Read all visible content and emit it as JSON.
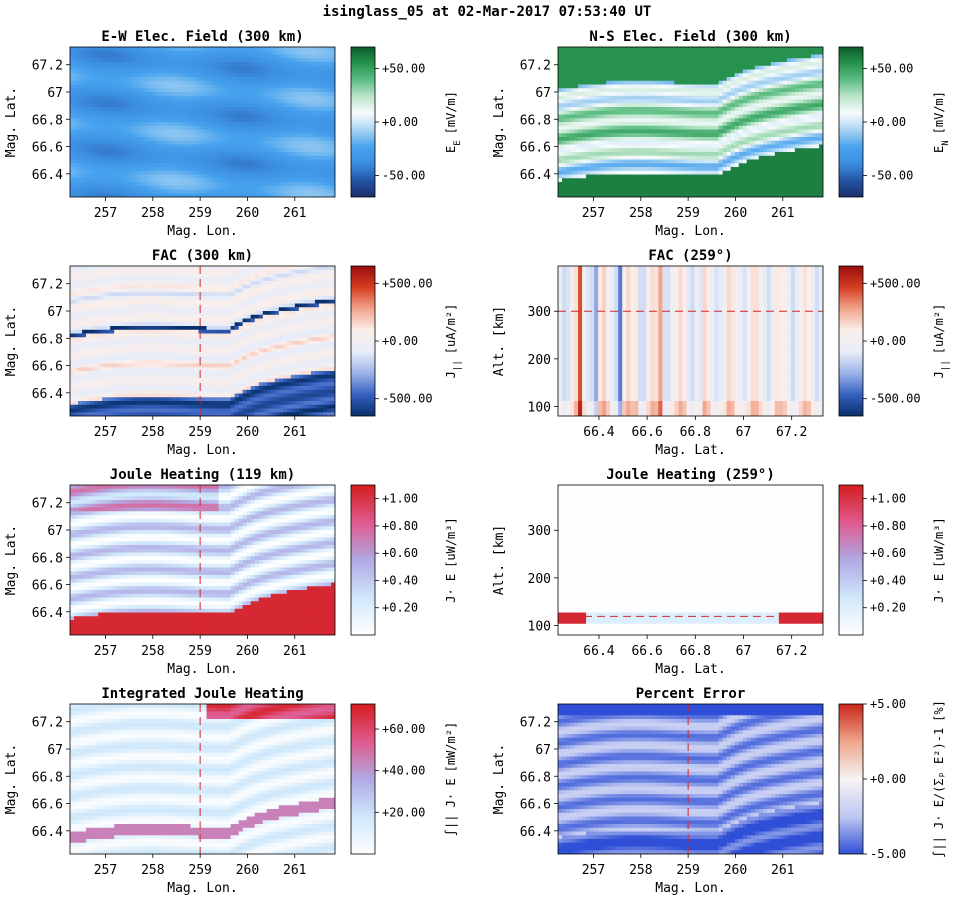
{
  "suptitle": "isinglass_05 at 02-Mar-2017 07:53:40 UT",
  "colors": {
    "blue_cmap": [
      "#1c2d6b",
      "#2555a6",
      "#3c8ee0",
      "#46a2ee",
      "#a6d2f2",
      "#f7fbff",
      "#bfe6cc",
      "#5fbf86",
      "#27944f",
      "#0a5d2a"
    ],
    "rdbu_cmap": [
      "#09306b",
      "#3560c0",
      "#9db3e8",
      "#e7edf9",
      "#fbeeea",
      "#f2a58c",
      "#d63d22",
      "#9a0c0c"
    ],
    "joule_cmap": [
      "#ffffff",
      "#cfe8fb",
      "#b0a9e4",
      "#e05a8e",
      "#d41d1d"
    ],
    "err_cmap": [
      "#2f4fd6",
      "#bfc8f2",
      "#f7f4f2",
      "#efa58b",
      "#c8261b"
    ],
    "cut_line": "#d62728"
  },
  "chart_data": [
    {
      "id": "ew",
      "type": "heatmap",
      "title": "E-W Elec. Field (300 km)",
      "xlabel": "Mag. Lon.",
      "ylabel": "Mag. Lat.",
      "x_ticks": [
        "257",
        "258",
        "259",
        "260",
        "261"
      ],
      "x_tick_values": [
        257,
        258,
        259,
        260,
        261
      ],
      "y_ticks": [
        "66.4",
        "66.6",
        "66.8",
        "67",
        "67.2"
      ],
      "y_tick_values": [
        66.4,
        66.6,
        66.8,
        67.0,
        67.2
      ],
      "xlim": [
        256.25,
        261.85
      ],
      "ylim": [
        66.23,
        67.33
      ],
      "colorbar": {
        "label": "E",
        "label_sub": "E",
        "unit": "[mV/m]",
        "ticks": [
          "+50.00",
          "+0.00",
          "-50.00"
        ],
        "tick_values": [
          50,
          0,
          -50
        ],
        "range": [
          -70,
          70
        ],
        "cmap": "blue_cmap"
      },
      "cut_value": null
    },
    {
      "id": "ns",
      "type": "heatmap",
      "title": "N-S Elec. Field (300 km)",
      "xlabel": "Mag. Lon.",
      "ylabel": "Mag. Lat.",
      "x_ticks": [
        "257",
        "258",
        "259",
        "260",
        "261"
      ],
      "x_tick_values": [
        257,
        258,
        259,
        260,
        261
      ],
      "y_ticks": [
        "66.4",
        "66.6",
        "66.8",
        "67",
        "67.2"
      ],
      "y_tick_values": [
        66.4,
        66.6,
        66.8,
        67.0,
        67.2
      ],
      "xlim": [
        256.25,
        261.85
      ],
      "ylim": [
        66.23,
        67.33
      ],
      "colorbar": {
        "label": "E",
        "label_sub": "N",
        "unit": "[mV/m]",
        "ticks": [
          "+50.00",
          "+0.00",
          "-50.00"
        ],
        "tick_values": [
          50,
          0,
          -50
        ],
        "range": [
          -70,
          70
        ],
        "cmap": "blue_cmap"
      },
      "cut_value": null
    },
    {
      "id": "fac",
      "type": "heatmap",
      "title": "FAC (300 km)",
      "xlabel": "Mag. Lon.",
      "ylabel": "Mag. Lat.",
      "x_ticks": [
        "257",
        "258",
        "259",
        "260",
        "261"
      ],
      "x_tick_values": [
        257,
        258,
        259,
        260,
        261
      ],
      "y_ticks": [
        "66.4",
        "66.6",
        "66.8",
        "67",
        "67.2"
      ],
      "y_tick_values": [
        66.4,
        66.6,
        66.8,
        67.0,
        67.2
      ],
      "xlim": [
        256.25,
        261.85
      ],
      "ylim": [
        66.23,
        67.33
      ],
      "colorbar": {
        "label": "J",
        "label_sub": "||",
        "unit": "[uA/m²]",
        "ticks": [
          "+500.00",
          "+0.00",
          "-500.00"
        ],
        "tick_values": [
          500,
          0,
          -500
        ],
        "range": [
          -650,
          650
        ],
        "cmap": "rdbu_cmap"
      },
      "cut_value": 259,
      "cut_orientation": "vertical"
    },
    {
      "id": "facalt",
      "type": "heatmap",
      "title": "FAC (259°)",
      "xlabel": "Mag. Lat.",
      "ylabel": "Alt. [km]",
      "x_ticks": [
        "66.4",
        "66.6",
        "66.8",
        "67",
        "67.2"
      ],
      "x_tick_values": [
        66.4,
        66.6,
        66.8,
        67.0,
        67.2
      ],
      "y_ticks": [
        "100",
        "200",
        "300"
      ],
      "y_tick_values": [
        100,
        200,
        300
      ],
      "xlim": [
        66.23,
        67.33
      ],
      "ylim": [
        80,
        395
      ],
      "colorbar": {
        "label": "J",
        "label_sub": "||",
        "unit": "[uA/m²]",
        "ticks": [
          "+500.00",
          "+0.00",
          "-500.00"
        ],
        "tick_values": [
          500,
          0,
          -500
        ],
        "range": [
          -650,
          650
        ],
        "cmap": "rdbu_cmap"
      },
      "cut_value": 300,
      "cut_orientation": "horizontal"
    },
    {
      "id": "jh",
      "type": "heatmap",
      "title": "Joule Heating (119 km)",
      "xlabel": "Mag. Lon.",
      "ylabel": "Mag. Lat.",
      "x_ticks": [
        "257",
        "258",
        "259",
        "260",
        "261"
      ],
      "x_tick_values": [
        257,
        258,
        259,
        260,
        261
      ],
      "y_ticks": [
        "66.4",
        "66.6",
        "66.8",
        "67",
        "67.2"
      ],
      "y_tick_values": [
        66.4,
        66.6,
        66.8,
        67.0,
        67.2
      ],
      "xlim": [
        256.25,
        261.85
      ],
      "ylim": [
        66.23,
        67.33
      ],
      "colorbar": {
        "label": "J· E",
        "label_sub": "",
        "unit": "[uW/m³]",
        "ticks": [
          "+1.00",
          "+0.80",
          "+0.60",
          "+0.40",
          "+0.20"
        ],
        "tick_values": [
          1.0,
          0.8,
          0.6,
          0.4,
          0.2
        ],
        "range": [
          0,
          1.1
        ],
        "cmap": "joule_cmap"
      },
      "cut_value": 259,
      "cut_orientation": "vertical"
    },
    {
      "id": "jhalt",
      "type": "heatmap",
      "title": "Joule Heating (259°)",
      "xlabel": "Mag. Lat.",
      "ylabel": "Alt. [km]",
      "x_ticks": [
        "66.4",
        "66.6",
        "66.8",
        "67",
        "67.2"
      ],
      "x_tick_values": [
        66.4,
        66.6,
        66.8,
        67.0,
        67.2
      ],
      "y_ticks": [
        "100",
        "200",
        "300"
      ],
      "y_tick_values": [
        100,
        200,
        300
      ],
      "xlim": [
        66.23,
        67.33
      ],
      "ylim": [
        80,
        395
      ],
      "colorbar": {
        "label": "J· E",
        "label_sub": "",
        "unit": "[uW/m³]",
        "ticks": [
          "+1.00",
          "+0.80",
          "+0.60",
          "+0.40",
          "+0.20"
        ],
        "tick_values": [
          1.0,
          0.8,
          0.6,
          0.4,
          0.2
        ],
        "range": [
          0,
          1.1
        ],
        "cmap": "joule_cmap"
      },
      "cut_value": 119,
      "cut_orientation": "horizontal"
    },
    {
      "id": "ijh",
      "type": "heatmap",
      "title": "Integrated Joule Heating",
      "xlabel": "Mag. Lon.",
      "ylabel": "Mag. Lat.",
      "x_ticks": [
        "257",
        "258",
        "259",
        "260",
        "261"
      ],
      "x_tick_values": [
        257,
        258,
        259,
        260,
        261
      ],
      "y_ticks": [
        "66.4",
        "66.6",
        "66.8",
        "67",
        "67.2"
      ],
      "y_tick_values": [
        66.4,
        66.6,
        66.8,
        67.0,
        67.2
      ],
      "xlim": [
        256.25,
        261.85
      ],
      "ylim": [
        66.23,
        67.33
      ],
      "colorbar": {
        "label": "∫|| J· E",
        "label_sub": "",
        "unit": "[mW/m²]",
        "ticks": [
          "+60.00",
          "+40.00",
          "+20.00"
        ],
        "tick_values": [
          60,
          40,
          20
        ],
        "range": [
          0,
          72
        ],
        "cmap": "joule_cmap"
      },
      "cut_value": 259,
      "cut_orientation": "vertical"
    },
    {
      "id": "err",
      "type": "heatmap",
      "title": "Percent Error",
      "xlabel": "Mag. Lon.",
      "ylabel": "Mag. Lat.",
      "x_ticks": [
        "257",
        "258",
        "259",
        "260",
        "261"
      ],
      "x_tick_values": [
        257,
        258,
        259,
        260,
        261
      ],
      "y_ticks": [
        "66.4",
        "66.6",
        "66.8",
        "67",
        "67.2"
      ],
      "y_tick_values": [
        66.4,
        66.6,
        66.8,
        67.0,
        67.2
      ],
      "xlim": [
        256.25,
        261.85
      ],
      "ylim": [
        66.23,
        67.33
      ],
      "colorbar": {
        "label": "∫|| J· E/(Σₚ E²)-1",
        "label_sub": "",
        "unit": "[%]",
        "ticks": [
          "+5.00",
          "+0.00",
          "-5.00"
        ],
        "tick_values": [
          5,
          0,
          -5
        ],
        "range": [
          -5,
          5
        ],
        "cmap": "err_cmap"
      },
      "cut_value": 259,
      "cut_orientation": "vertical"
    }
  ]
}
